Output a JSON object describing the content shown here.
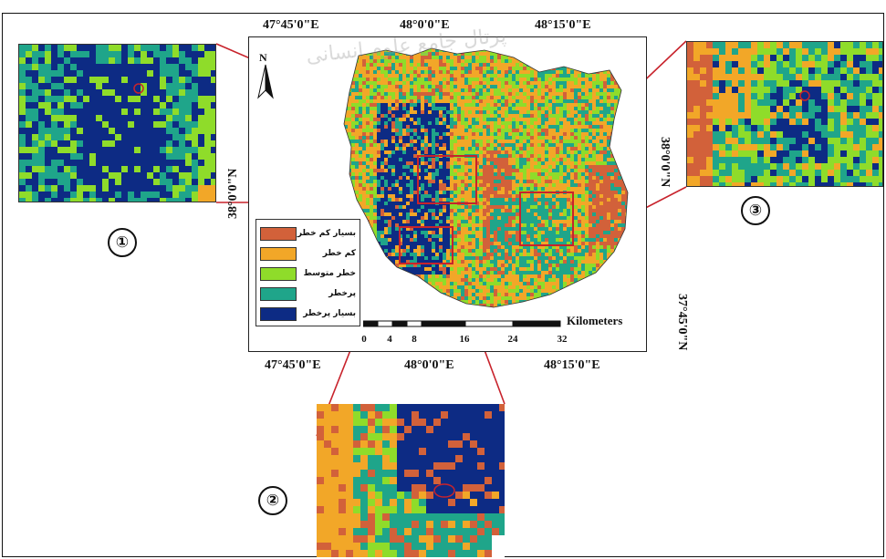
{
  "map": {
    "coords_top": [
      "47°45'0\"E",
      "48°0'0\"E",
      "48°15'0\"E"
    ],
    "coords_bottom": [
      "47°45'0\"E",
      "48°0'0\"E",
      "48°15'0\"E"
    ],
    "coords_left": [
      "38°0'0\"N"
    ],
    "coords_right": [
      "38°0'0\"N",
      "37°45'0\"N"
    ],
    "north_label": "N",
    "scale_unit": "Kilometers",
    "scale_ticks": [
      "0",
      "4",
      "8",
      "16",
      "24",
      "32"
    ],
    "watermark": "پرتال جامع علوم انسانی"
  },
  "legend": {
    "items": [
      {
        "label": "بسیار کم خطر",
        "color": "#d2613a"
      },
      {
        "label": "کم خطر",
        "color": "#f2a728"
      },
      {
        "label": "خطر متوسط",
        "color": "#8fdc2a"
      },
      {
        "label": "پرخطر",
        "color": "#1fa58a"
      },
      {
        "label": "بسیار پرخطر",
        "color": "#0d2b84"
      }
    ]
  },
  "insets": [
    {
      "number": "①"
    },
    {
      "number": "②"
    },
    {
      "number": "③"
    }
  ],
  "colors": {
    "connector": "#c8232c",
    "box": "#c8232c"
  }
}
